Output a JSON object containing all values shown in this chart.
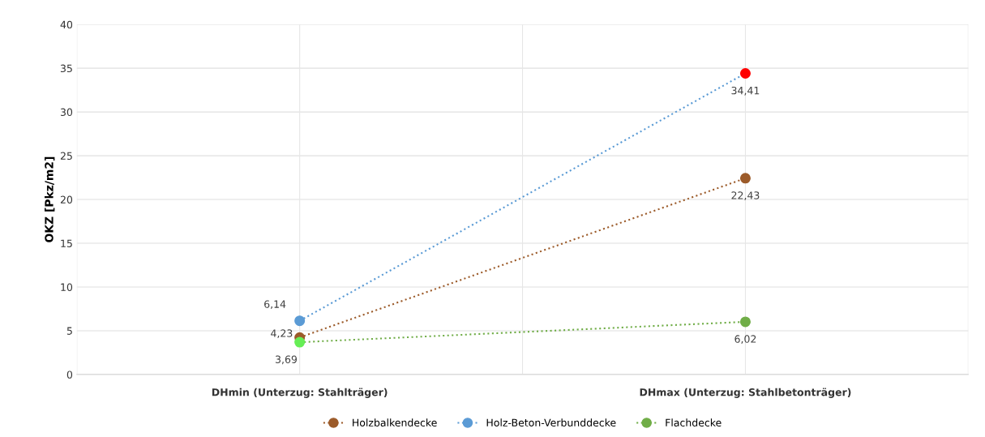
{
  "chart_data": {
    "type": "line",
    "ylabel": "OKZ [Pkz/m2]",
    "categories": [
      "DHmin (Unterzug: Stahlträger)",
      "DHmax (Unterzug: Stahlbetonträger)"
    ],
    "series": [
      {
        "name": "Holzbalkendecke",
        "color": "#9c5b2a",
        "colors": [
          "#9c5b2a",
          "#9c5b2a"
        ],
        "values": [
          4.23,
          22.43
        ],
        "value_labels": [
          "4,23",
          "22,43"
        ]
      },
      {
        "name": "Holz-Beton-Verbunddecke",
        "color": "#5b9bd5",
        "colors": [
          "#5b9bd5",
          "#ff0000"
        ],
        "values": [
          6.14,
          34.41
        ],
        "value_labels": [
          "6,14",
          "34,41"
        ]
      },
      {
        "name": "Flachdecke",
        "color": "#70ad47",
        "colors": [
          "#66ee55",
          "#70ad47"
        ],
        "values": [
          3.69,
          6.02
        ],
        "value_labels": [
          "3,69",
          "6,02"
        ]
      }
    ],
    "ylim": [
      0,
      40
    ],
    "yticks": [
      0,
      5,
      10,
      15,
      20,
      25,
      30,
      35,
      40
    ],
    "grid": true,
    "legend": "bottom",
    "marker": "circle",
    "line_style": "dotted"
  }
}
